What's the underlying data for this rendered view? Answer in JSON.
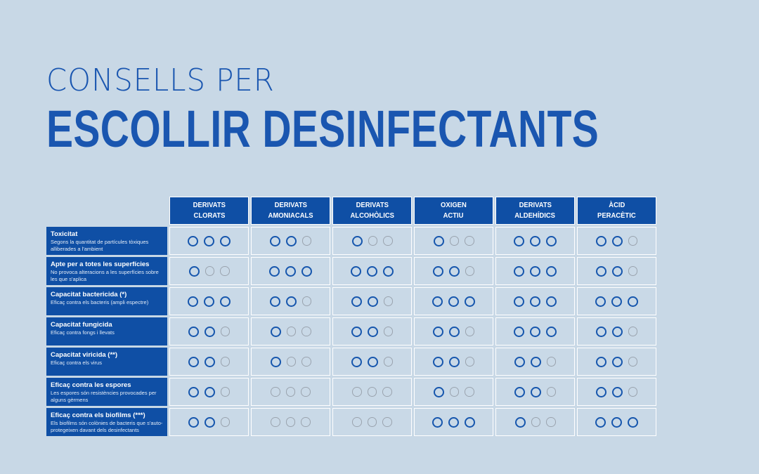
{
  "title": {
    "line1": "CONSELLS PER",
    "line2": "ESCOLLIR DESINFECTANTS"
  },
  "columns": [
    {
      "line1": "DERIVATS",
      "line2": "CLORATS"
    },
    {
      "line1": "DERIVATS",
      "line2": "AMONIACALS"
    },
    {
      "line1": "DERIVATS",
      "line2": "ALCOHÒLICS"
    },
    {
      "line1": "OXIGEN",
      "line2": "ACTIU"
    },
    {
      "line1": "DERIVATS",
      "line2": "ALDEHÍDICS"
    },
    {
      "line1": "ÀCID",
      "line2": "PERACÈTIC"
    }
  ],
  "rows": [
    {
      "title": "Toxicitat",
      "desc": "Segons la quantitat de partícules tòxiques alliberades a l'ambient",
      "ratings": [
        3,
        2,
        1,
        1,
        3,
        2
      ]
    },
    {
      "title": "Apte per a totes les superfícies",
      "desc": "No provoca alteracions a les superfícies sobre les que s'aplica",
      "ratings": [
        1,
        3,
        3,
        2,
        3,
        2
      ]
    },
    {
      "title": "Capacitat bactericida (*)",
      "desc": "Eficaç contra els bacteris (ampli espectre)",
      "ratings": [
        3,
        2,
        2,
        3,
        3,
        3
      ]
    },
    {
      "title": "Capacitat fungicida",
      "desc": "Eficaç contra fongs i llevats",
      "ratings": [
        2,
        1,
        2,
        2,
        3,
        2
      ]
    },
    {
      "title": "Capacitat viricida (**)",
      "desc": "Eficaç contra els virus",
      "ratings": [
        2,
        1,
        2,
        2,
        2,
        2
      ]
    },
    {
      "title": "Eficaç contra les espores",
      "desc": "Les espores són resistències provocades per alguns gèrmens",
      "ratings": [
        2,
        0,
        0,
        1,
        2,
        2
      ]
    },
    {
      "title": "Eficaç contra els biofilms (***)",
      "desc": "Els biofilms són colònies de bacteris que s'auto-protegeixen davant dels desinfectants",
      "ratings": [
        2,
        0,
        0,
        3,
        1,
        3
      ]
    }
  ],
  "colors": {
    "background": "#c8d8e6",
    "brand_blue": "#0f4fa5",
    "title_blue": "#1a56b0",
    "rating_on": "#1656ad",
    "rating_off": "#9aa3ae"
  }
}
